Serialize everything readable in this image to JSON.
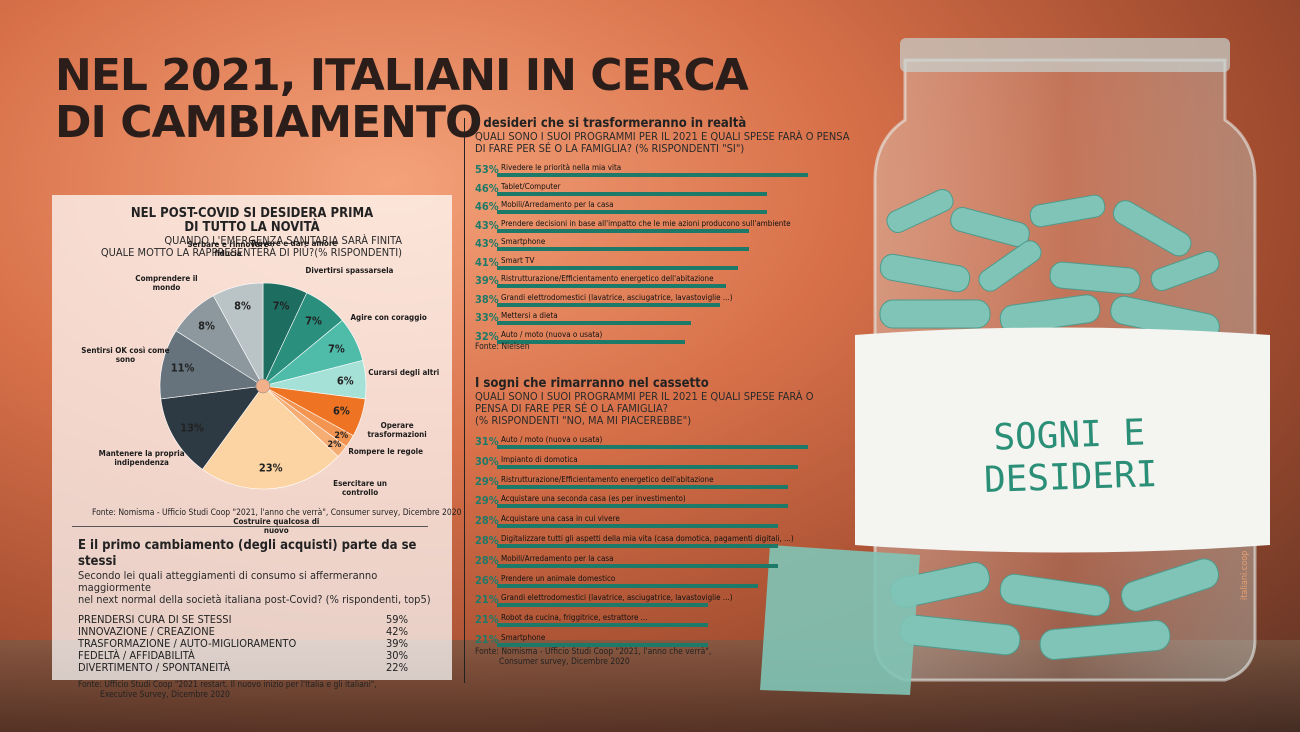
{
  "header": {
    "title": [
      "NEL 2021, ITALIANI IN CERCA",
      "DI CAMBIAMENTO"
    ]
  },
  "jar": {
    "label": [
      "SOGNI E",
      "DESIDERI"
    ],
    "credit": "italiani.coop"
  },
  "chart_data": [
    {
      "type": "pie",
      "title": [
        "NEL POST-COVID  SI DESIDERA PRIMA",
        "DI TUTTO LA NOVITÀ"
      ],
      "subtitle": [
        "QUANDO L'EMERGENZA SANITARIA SARÀ FINITA",
        "QUALE MOTTO LA RAPPRESENTERÀ DI PIÙ?(% RISPONDENTI)"
      ],
      "categories": [
        "Trovare e dare amore",
        "Divertirsi spassarsela",
        "Agire con coraggio",
        "Curarsi degli altri",
        "Operare trasformazioni",
        "Rompere le regole",
        "Esercitare un controllo",
        "Costruire qualcosa di nuovo",
        "Mantenere la propria  indipendenza",
        "Sentirsi OK così come sono",
        "Comprendere il mondo",
        "Serbare e rinnovare fiducia"
      ],
      "values": [
        7,
        7,
        7,
        6,
        6,
        2,
        2,
        23,
        13,
        11,
        8,
        8
      ],
      "value_labels": [
        "7%",
        "7%",
        "7%",
        "6%",
        "6%",
        "2%",
        "2%",
        "23%",
        "13%",
        "11%",
        "8%",
        "8%"
      ],
      "colors": [
        "#1d6e60",
        "#2a8f7d",
        "#4fbcaa",
        "#a6e1d8",
        "#ee7424",
        "#f39550",
        "#f6ad74",
        "#fcd3a2",
        "#2d3a43",
        "#66737c",
        "#8c979e",
        "#bac4c7"
      ],
      "source": "Fonte: Nomisma - Ufficio Studi Coop \"2021, l'anno che verrà\", Consumer survey, Dicembre 2020"
    },
    {
      "type": "bar",
      "title": "I desideri che si  trasformeranno in realtà",
      "subtitle": [
        "QUALI SONO I SUOI PROGRAMMI PER IL 2021 E QUALI SPESE FARÀ O PENSA",
        "DI FARE  PER SÉ O LA FAMIGLIA? (% RISPONDENTI \"SI\")"
      ],
      "categories": [
        "Rivedere le priorità nella mia vita",
        "Tablet/Computer",
        "Mobili/Arredamento per la casa",
        "Prendere decisioni in base all'impatto che le mie azioni producono sull'ambiente",
        "Smartphone",
        "Smart TV",
        "Ristrutturazione/Efficientamento energetico dell'abitazione",
        "Grandi elettrodomestici (lavatrice, asciugatrice, lavastoviglie ...)",
        "Mettersi a dieta",
        "Auto / moto (nuova o usata)"
      ],
      "values": [
        53,
        46,
        46,
        43,
        43,
        41,
        39,
        38,
        33,
        32
      ],
      "value_labels": [
        "53%",
        "46%",
        "46%",
        "43%",
        "43%",
        "41%",
        "39%",
        "38%",
        "33%",
        "32%"
      ],
      "color": "#1e7a68",
      "source": [
        "Fonte: Nielsen"
      ]
    },
    {
      "type": "bar",
      "title": "I sogni che rimarranno nel cassetto",
      "subtitle": [
        "QUALI SONO I SUOI PROGRAMMI PER IL 2021 E QUALI SPESE FARÀ O",
        "PENSA DI FARE PER SÉ O LA FAMIGLIA?",
        "(% RISPONDENTI \"NO, MA MI PIACEREBBE\")"
      ],
      "categories": [
        "Auto / moto (nuova o usata)",
        "Impianto di domotica",
        "Ristrutturazione/Efficientamento energetico dell'abitazione",
        "Acquistare una seconda casa (es per investimento)",
        "Acquistare una casa in cui vivere",
        "Digitalizzare tutti gli aspetti della mia vita (casa domotica, pagamenti digitali, ...)",
        "Mobili/Arredamento per la casa",
        "Prendere un animale domestico",
        "Grandi elettrodomestici (lavatrice, asciugatrice, lavastoviglie ...)",
        "Robot da cucina, friggitrice, estrattore ...",
        "Smartphone"
      ],
      "values": [
        31,
        30,
        29,
        29,
        28,
        28,
        28,
        26,
        21,
        21,
        21
      ],
      "value_labels": [
        "31%",
        "30%",
        "29%",
        "29%",
        "28%",
        "28%",
        "28%",
        "26%",
        "21%",
        "21%",
        "21%"
      ],
      "color": "#1e7a68",
      "source": [
        "Fonte: Nomisma - Ufficio Studi Coop \"2021, l'anno che verrà\",",
        "Consumer survey, Dicembre 2020"
      ]
    }
  ],
  "table": {
    "title": "E il primo cambiamento (degli acquisti) parte da se stessi",
    "subtitle": [
      "Secondo lei quali atteggiamenti di consumo si affermeranno maggiormente",
      "nel next normal della società italiana post-Covid? (% rispondenti, top5)"
    ],
    "rows": [
      [
        "PRENDERSI CURA DI SE STESSI",
        "59%"
      ],
      [
        "INNOVAZIONE / CREAZIONE",
        "42%"
      ],
      [
        "TRASFORMAZIONE / AUTO-MIGLIORAMENTO",
        "39%"
      ],
      [
        "FEDELTÀ / AFFIDABILITÀ",
        "30%"
      ],
      [
        "DIVERTIMENTO / SPONTANEITÀ",
        "22%"
      ]
    ],
    "source": [
      "Fonte: Ufficio Studi Coop \"2021 restart. Il nuovo inizio per l'Italia e gli italiani\",",
      "Executive Survey, Dicembre 2020"
    ]
  }
}
